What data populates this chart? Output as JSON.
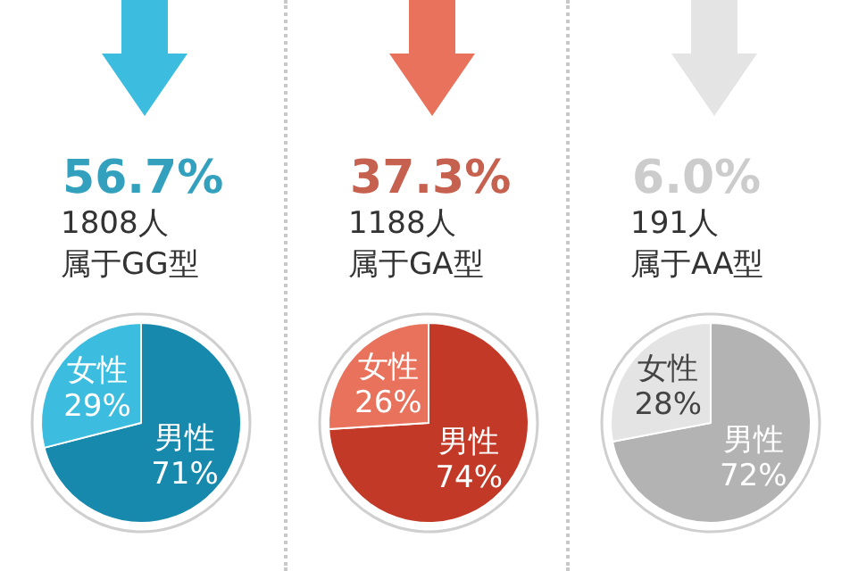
{
  "chart_data": [
    {
      "type": "pie",
      "title": "56.7%",
      "subtitle": "1808人",
      "annotations": [
        "属于GG型"
      ],
      "categories": [
        "男性",
        "女性"
      ],
      "values": [
        71,
        29
      ],
      "value_labels": [
        "71%",
        "29%"
      ],
      "colors": [
        "#1689ad",
        "#3cbde0"
      ],
      "legend": false
    },
    {
      "type": "pie",
      "title": "37.3%",
      "subtitle": "1188人",
      "annotations": [
        "属于GA型"
      ],
      "categories": [
        "男性",
        "女性"
      ],
      "values": [
        74,
        26
      ],
      "value_labels": [
        "74%",
        "26%"
      ],
      "colors": [
        "#c23a27",
        "#e8725c"
      ],
      "legend": false
    },
    {
      "type": "pie",
      "title": "6.0%",
      "subtitle": "191人",
      "annotations": [
        "属于AA型"
      ],
      "categories": [
        "男性",
        "女性"
      ],
      "values": [
        72,
        28
      ],
      "value_labels": [
        "72%",
        "28%"
      ],
      "colors": [
        "#b3b3b3",
        "#e4e4e4"
      ],
      "legend": false
    }
  ]
}
